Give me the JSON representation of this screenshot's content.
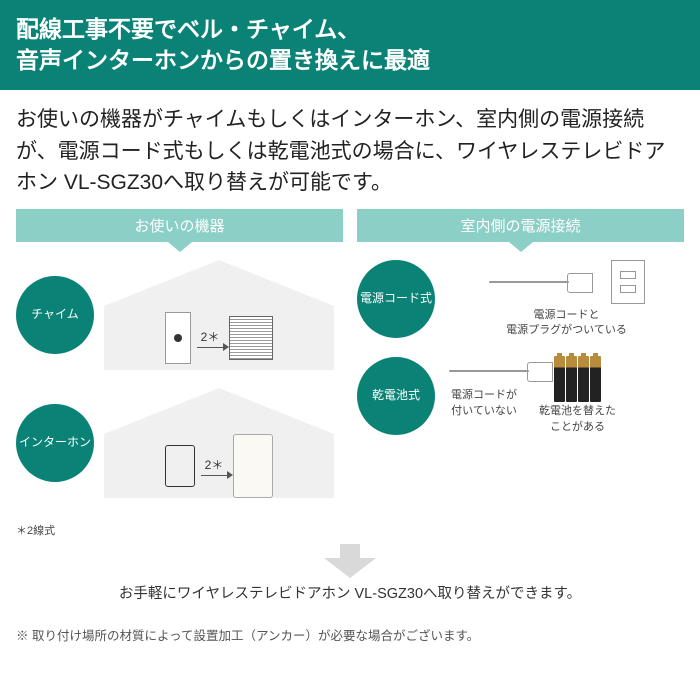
{
  "colors": {
    "primary": "#0a8276",
    "header_bg": "#8bcfc6",
    "gray_arrow": "#d9d9d9",
    "house_fill": "#f0f0f0"
  },
  "header": {
    "text": "配線工事不要でベル・チャイム、\n音声インターホンからの置き換えに最適"
  },
  "intro": {
    "text": "お使いの機器がチャイムもしくはインターホン、室内側の電源接続が、電源コード式もしくは乾電池式の場合に、ワイヤレステレビドアホン VL-SGZ30へ取り替えが可能です。"
  },
  "left": {
    "title": "お使いの機器",
    "row_chime": {
      "label": "チャイム",
      "wire_label": "2＊"
    },
    "row_intercom": {
      "label": "インターホン",
      "wire_label": "2＊"
    },
    "subnote": "＊2線式"
  },
  "right": {
    "title": "室内側の電源接続",
    "row_cord": {
      "label": "電源コード式",
      "caption": "電源コードと\n電源プラグがついている"
    },
    "row_batt": {
      "label": "乾電池式",
      "caption_left": "電源コードが\n付いていない",
      "caption_right": "乾電池を替えた\nことがある"
    }
  },
  "convert": {
    "text": "お手軽にワイヤレステレビドアホン VL-SGZ30へ取り替えができます。"
  },
  "footnote": {
    "text": "※ 取り付け場所の材質によって設置加工（アンカー）が必要な場合がございます。"
  }
}
